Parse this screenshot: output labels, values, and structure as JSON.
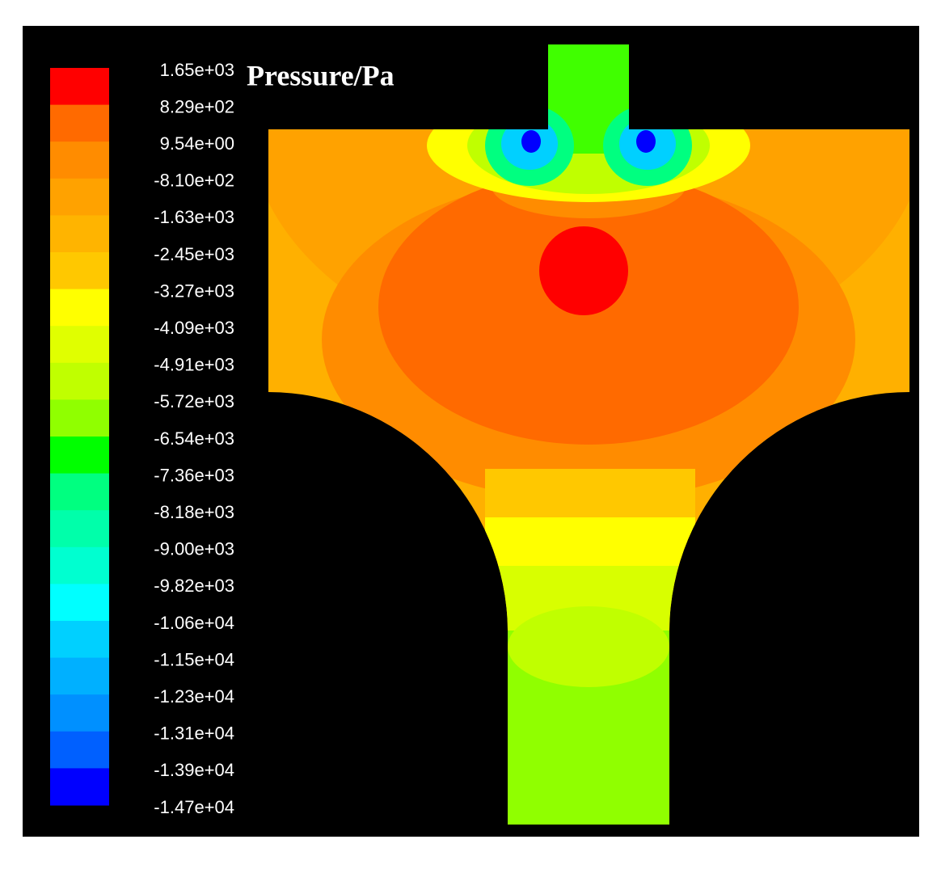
{
  "legend": {
    "title": "Pressure/Pa",
    "labels": [
      "1.65e+03",
      "8.29e+02",
      "9.54e+00",
      "-8.10e+02",
      "-1.63e+03",
      "-2.45e+03",
      "-3.27e+03",
      "-4.09e+03",
      "-4.91e+03",
      "-5.72e+03",
      "-6.54e+03",
      "-7.36e+03",
      "-8.18e+03",
      "-9.00e+03",
      "-9.82e+03",
      "-1.06e+04",
      "-1.15e+04",
      "-1.23e+04",
      "-1.31e+04",
      "-1.39e+04",
      "-1.47e+04"
    ],
    "colors": [
      "#ff0000",
      "#ff6a00",
      "#ff8c00",
      "#ffa200",
      "#ffb400",
      "#ffc800",
      "#ffff00",
      "#e0ff00",
      "#c0ff00",
      "#90ff00",
      "#00ff00",
      "#00ff80",
      "#00ffaa",
      "#00ffd0",
      "#00ffff",
      "#00d0ff",
      "#00b0ff",
      "#0090ff",
      "#0060ff",
      "#0000ff"
    ]
  }
}
